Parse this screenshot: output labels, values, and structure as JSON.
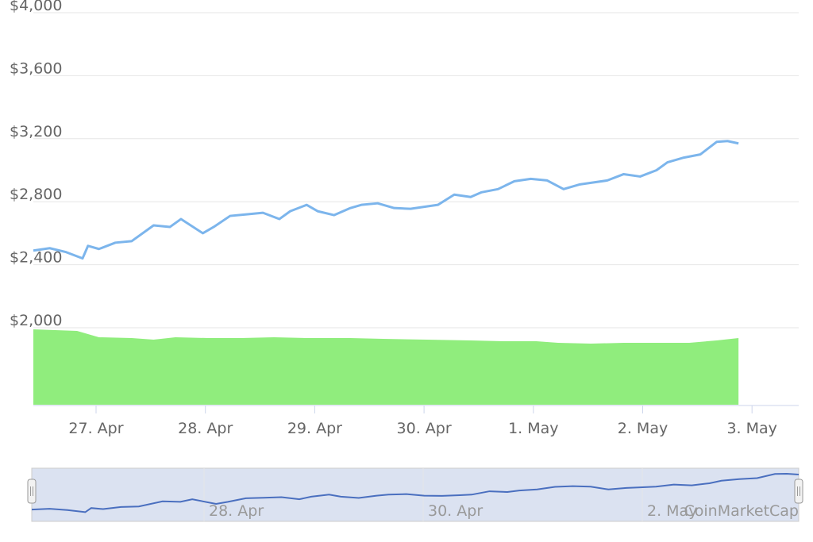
{
  "chart_data": {
    "type": "line",
    "title": "",
    "xlabel": "",
    "ylabel": "",
    "y_ticks": [
      "$2,000",
      "$2,400",
      "$2,800",
      "$3,200",
      "$3,600",
      "$4,000"
    ],
    "y_tick_values": [
      2000,
      2400,
      2800,
      3200,
      3600,
      4000
    ],
    "ylim": [
      2000,
      4000
    ],
    "x_ticks": [
      "27. Apr",
      "28. Apr",
      "29. Apr",
      "30. Apr",
      "1. May",
      "2. May",
      "3. May"
    ],
    "grid": true,
    "series": [
      {
        "color": "#7cb5ec",
        "x": [
          0.0,
          0.15,
          0.3,
          0.45,
          0.5,
          0.6,
          0.75,
          0.9,
          1.1,
          1.25,
          1.35,
          1.55,
          1.65,
          1.8,
          1.95,
          2.1,
          2.25,
          2.35,
          2.5,
          2.6,
          2.75,
          2.9,
          3.0,
          3.15,
          3.3,
          3.45,
          3.6,
          3.7,
          3.85,
          4.0,
          4.1,
          4.25,
          4.4,
          4.55,
          4.7,
          4.85,
          5.0,
          5.1,
          5.25,
          5.4,
          5.55,
          5.7,
          5.8,
          5.95,
          6.1,
          6.25,
          6.35,
          6.45
        ],
        "values": [
          2490,
          2505,
          2480,
          2440,
          2520,
          2500,
          2540,
          2550,
          2650,
          2640,
          2690,
          2600,
          2640,
          2710,
          2720,
          2730,
          2690,
          2740,
          2780,
          2740,
          2715,
          2760,
          2780,
          2790,
          2760,
          2755,
          2770,
          2780,
          2845,
          2830,
          2860,
          2880,
          2930,
          2945,
          2935,
          2880,
          2910,
          2920,
          2935,
          2975,
          2960,
          3000,
          3050,
          3080,
          3100,
          3180,
          3185,
          3170
        ]
      }
    ],
    "volume": {
      "color": "#90ed7d",
      "note_scale": "unlabeled",
      "x": [
        0.0,
        0.4,
        0.6,
        0.9,
        1.1,
        1.3,
        1.6,
        1.9,
        2.2,
        2.5,
        2.9,
        3.2,
        3.6,
        4.0,
        4.3,
        4.6,
        4.8,
        5.1,
        5.4,
        5.7,
        6.0,
        6.25,
        6.45
      ],
      "values": [
        0.95,
        0.93,
        0.85,
        0.84,
        0.82,
        0.85,
        0.84,
        0.84,
        0.85,
        0.84,
        0.84,
        0.83,
        0.82,
        0.81,
        0.8,
        0.8,
        0.78,
        0.77,
        0.78,
        0.78,
        0.78,
        0.81,
        0.84
      ]
    }
  },
  "navigator": {
    "labels": [
      "28. Apr",
      "30. Apr",
      "2. May"
    ],
    "label_x": [
      1.0,
      3.0,
      5.0
    ]
  },
  "branding": {
    "credit": "CoinMarketCap"
  }
}
